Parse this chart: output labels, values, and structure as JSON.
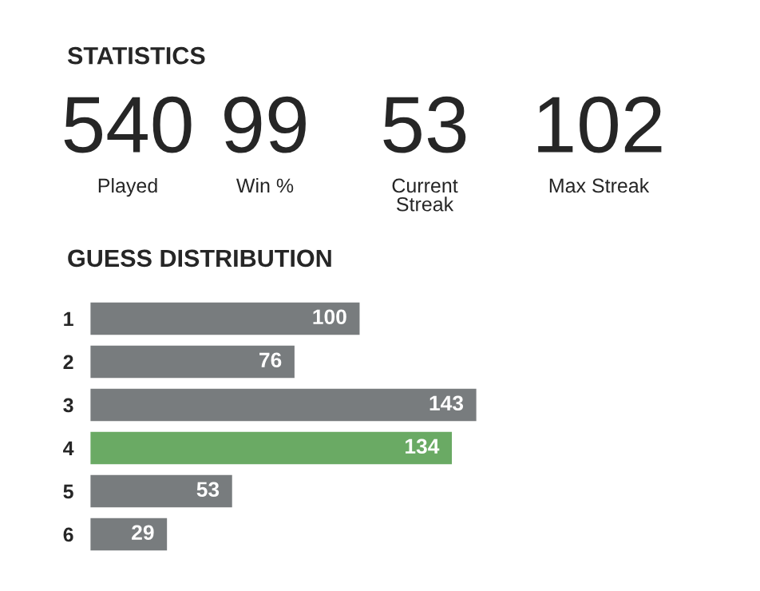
{
  "chart_data": [
    {
      "type": "other",
      "title": "STATISTICS",
      "categories": [
        "Played",
        "Win %",
        "Current Streak",
        "Max Streak"
      ],
      "values": [
        540,
        99,
        53,
        102
      ],
      "data_labels": true
    },
    {
      "type": "bar",
      "orientation": "horizontal",
      "title": "GUESS DISTRIBUTION",
      "categories": [
        "1",
        "2",
        "3",
        "4",
        "5",
        "6"
      ],
      "values": [
        100,
        76,
        143,
        134,
        53,
        29
      ],
      "colors": [
        "#787c7e",
        "#787c7e",
        "#787c7e",
        "#6aaa64",
        "#787c7e",
        "#787c7e"
      ],
      "data_labels": true,
      "grid": false,
      "legend": false
    }
  ]
}
